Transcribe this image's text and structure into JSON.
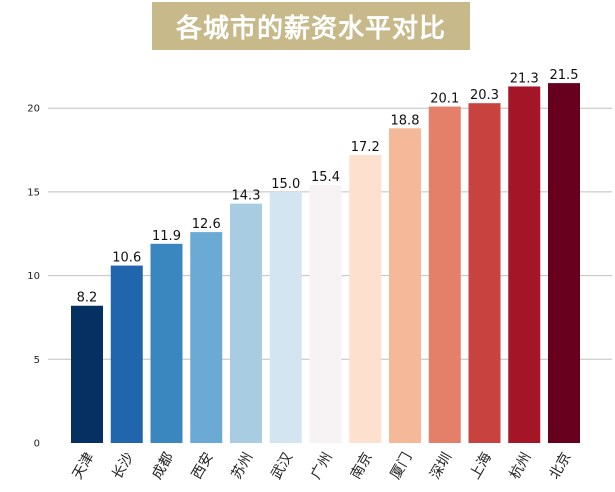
{
  "colors": {
    "title_background": "#c8b98a",
    "grid": "#c0c0c0",
    "bars": [
      "#053061",
      "#2166ac",
      "#3a87c0",
      "#6aaad4",
      "#a8cde3",
      "#d2e5f0",
      "#f7f3f4",
      "#fde0cd",
      "#f5b898",
      "#e4806a",
      "#c8433f",
      "#a41528",
      "#67001f"
    ]
  },
  "chart_data": {
    "type": "bar",
    "title": "各城市的薪资水平对比",
    "xlabel": "",
    "ylabel": "",
    "categories": [
      "天津",
      "长沙",
      "成都",
      "西安",
      "苏州",
      "武汉",
      "广州",
      "南京",
      "厦门",
      "深圳",
      "上海",
      "杭州",
      "北京"
    ],
    "values": [
      8.2,
      10.6,
      11.9,
      12.6,
      14.3,
      15.0,
      15.4,
      17.2,
      18.8,
      20.1,
      20.3,
      21.3,
      21.5
    ],
    "value_labels": [
      "8.2",
      "10.6",
      "11.9",
      "12.6",
      "14.3",
      "15.0",
      "15.4",
      "17.2",
      "18.8",
      "20.1",
      "20.3",
      "21.3",
      "21.5"
    ],
    "yticks": [
      0,
      5,
      10,
      15,
      20
    ],
    "ylim": [
      0,
      23
    ],
    "grid": true,
    "legend": "none"
  }
}
